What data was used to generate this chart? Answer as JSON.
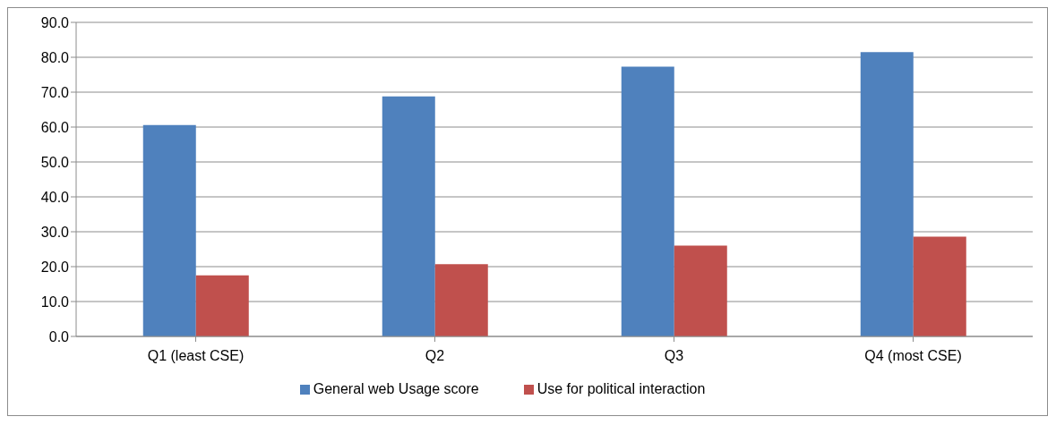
{
  "chart_data": {
    "type": "bar",
    "categories": [
      "Q1 (least CSE)",
      "Q2",
      "Q3",
      "Q4 (most CSE)"
    ],
    "series": [
      {
        "name": "General web Usage score",
        "color": "#4f81bd",
        "values": [
          60.6,
          68.8,
          77.3,
          81.5
        ]
      },
      {
        "name": "Use for political interaction",
        "color": "#c0504d",
        "values": [
          17.5,
          20.7,
          26.0,
          28.6
        ]
      }
    ],
    "ylim": [
      0,
      90
    ],
    "yticks": [
      {
        "value": 0,
        "label": "0.0"
      },
      {
        "value": 10,
        "label": "10.0"
      },
      {
        "value": 20,
        "label": "20.0"
      },
      {
        "value": 30,
        "label": "30.0"
      },
      {
        "value": 40,
        "label": "40.0"
      },
      {
        "value": 50,
        "label": "50.0"
      },
      {
        "value": 60,
        "label": "60.0"
      },
      {
        "value": 70,
        "label": "70.0"
      },
      {
        "value": 80,
        "label": "80.0"
      },
      {
        "value": 90,
        "label": "90.0"
      }
    ],
    "grid": "y",
    "legend": "bottom"
  }
}
